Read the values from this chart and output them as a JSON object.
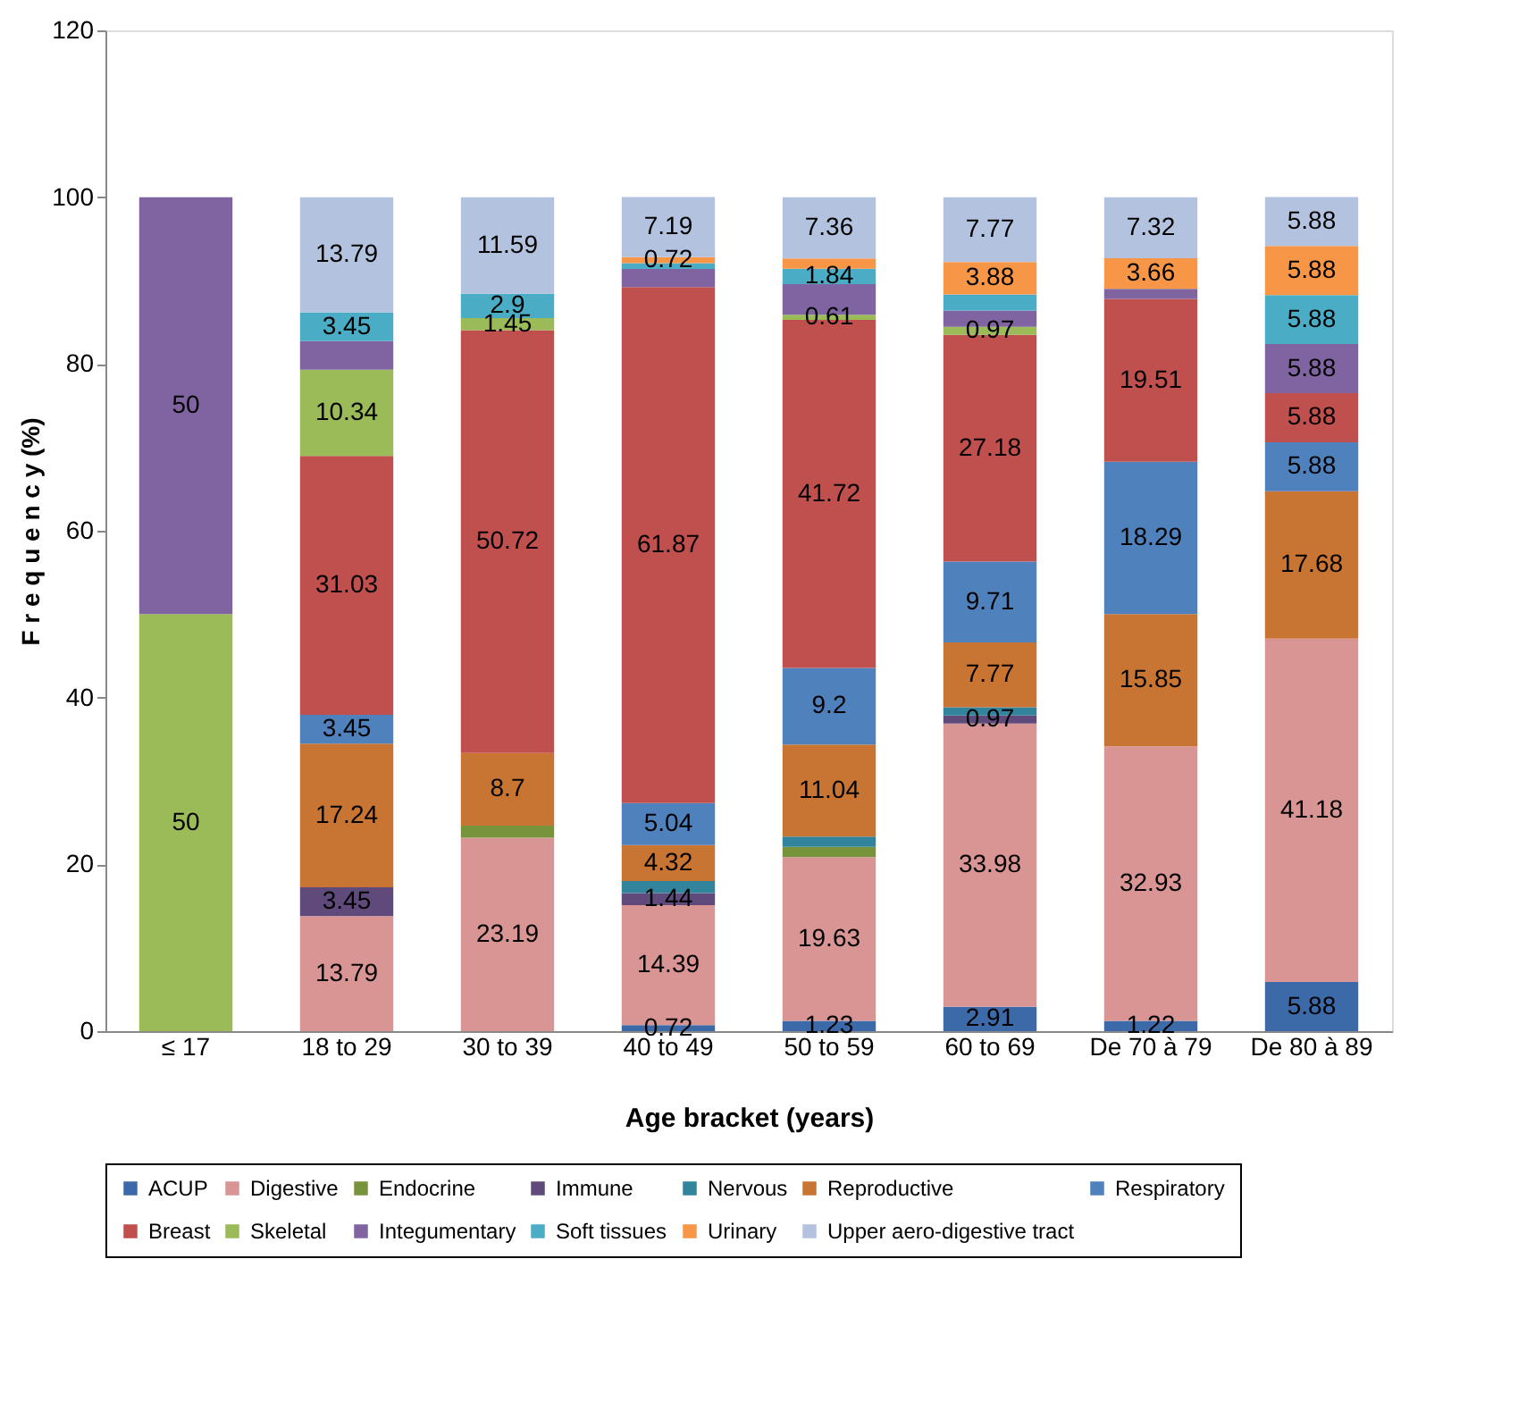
{
  "chart_data": {
    "type": "bar",
    "stacked": true,
    "xlabel": "Age bracket (years)",
    "ylabel": "F r e q u e n c y (%)",
    "categories": [
      "≤ 17",
      "18 to 29",
      "30 to 39",
      "40 to 49",
      "50 to 59",
      "60 to 69",
      "De 70 à 79",
      "De 80 à 89"
    ],
    "ylim": [
      0,
      120
    ],
    "yticks": [
      0,
      20,
      40,
      60,
      80,
      100,
      120
    ],
    "grid": false,
    "legend": "bottom",
    "series": [
      {
        "name": "ACUP",
        "color": "#3c6aa8",
        "values": [
          null,
          null,
          null,
          0.72,
          1.23,
          2.91,
          1.22,
          5.88
        ],
        "value_labels": [
          null,
          null,
          null,
          "0.72",
          "1.23",
          "2.91",
          "1.22",
          "5.88"
        ]
      },
      {
        "name": "Digestive",
        "color": "#d99594",
        "values": [
          null,
          13.79,
          23.19,
          14.39,
          19.63,
          33.98,
          32.93,
          41.18
        ],
        "value_labels": [
          null,
          "13.79",
          "23.19",
          "14.39",
          "19.63",
          "33.98",
          "32.93",
          "41.18"
        ]
      },
      {
        "name": "Endocrine",
        "color": "#77933c",
        "values": [
          null,
          null,
          1.45,
          null,
          1.23,
          null,
          null,
          null
        ],
        "value_labels": [
          null,
          null,
          null,
          null,
          null,
          null,
          null,
          null
        ]
      },
      {
        "name": "Immune",
        "color": "#604a7b",
        "values": [
          null,
          3.45,
          null,
          1.44,
          null,
          0.97,
          null,
          null
        ],
        "value_labels": [
          null,
          "3.45",
          null,
          "1.44",
          null,
          "0.97",
          null,
          null
        ]
      },
      {
        "name": "Nervous",
        "color": "#31849b",
        "values": [
          null,
          null,
          null,
          1.44,
          1.23,
          0.97,
          null,
          null
        ],
        "value_labels": [
          null,
          null,
          null,
          null,
          null,
          null,
          null,
          null
        ]
      },
      {
        "name": "Reproductive",
        "color": "#c87533",
        "values": [
          null,
          17.24,
          8.7,
          4.32,
          11.04,
          7.77,
          15.85,
          17.68
        ],
        "value_labels": [
          null,
          "17.24",
          "8.7",
          "4.32",
          "11.04",
          "7.77",
          "15.85",
          "17.68"
        ]
      },
      {
        "name": "Respiratory",
        "color": "#4f81bd",
        "values": [
          null,
          3.45,
          null,
          5.04,
          9.2,
          9.71,
          18.29,
          5.88
        ],
        "value_labels": [
          null,
          "3.45",
          null,
          "5.04",
          "9.2",
          "9.71",
          "18.29",
          "5.88"
        ]
      },
      {
        "name": "Breast",
        "color": "#c0504d",
        "values": [
          null,
          31.03,
          50.72,
          61.87,
          41.72,
          27.18,
          19.51,
          5.88
        ],
        "value_labels": [
          null,
          "31.03",
          "50.72",
          "61.87",
          "41.72",
          "27.18",
          "19.51",
          "5.88"
        ]
      },
      {
        "name": "Skeletal",
        "color": "#9bbb59",
        "values": [
          50,
          10.34,
          1.45,
          null,
          0.61,
          0.97,
          null,
          null
        ],
        "value_labels": [
          "50",
          "10.34",
          "1.45",
          null,
          "0.61",
          "0.97",
          null,
          null
        ]
      },
      {
        "name": "Integumentary",
        "color": "#8064a2",
        "values": [
          50,
          3.45,
          null,
          2.16,
          3.68,
          1.94,
          1.22,
          5.88
        ],
        "value_labels": [
          "50",
          null,
          null,
          null,
          null,
          null,
          null,
          "5.88"
        ]
      },
      {
        "name": "Soft tissues",
        "color": "#4bacc6",
        "values": [
          null,
          3.45,
          2.9,
          0.72,
          1.84,
          1.94,
          null,
          5.88
        ],
        "value_labels": [
          null,
          "3.45",
          "2.9",
          null,
          "1.84",
          null,
          null,
          "5.88"
        ]
      },
      {
        "name": "Urinary",
        "color": "#f79646",
        "values": [
          null,
          null,
          null,
          0.72,
          1.23,
          3.88,
          3.66,
          5.88
        ],
        "value_labels": [
          null,
          null,
          null,
          "0.72",
          null,
          "3.88",
          "3.66",
          "5.88"
        ]
      },
      {
        "name": "Upper aero-digestive tract",
        "color": "#b3c2de",
        "values": [
          null,
          13.79,
          11.59,
          7.19,
          7.36,
          7.77,
          7.32,
          5.88
        ],
        "value_labels": [
          null,
          "13.79",
          "11.59",
          "7.19",
          "7.36",
          "7.77",
          "7.32",
          "5.88"
        ]
      }
    ]
  }
}
